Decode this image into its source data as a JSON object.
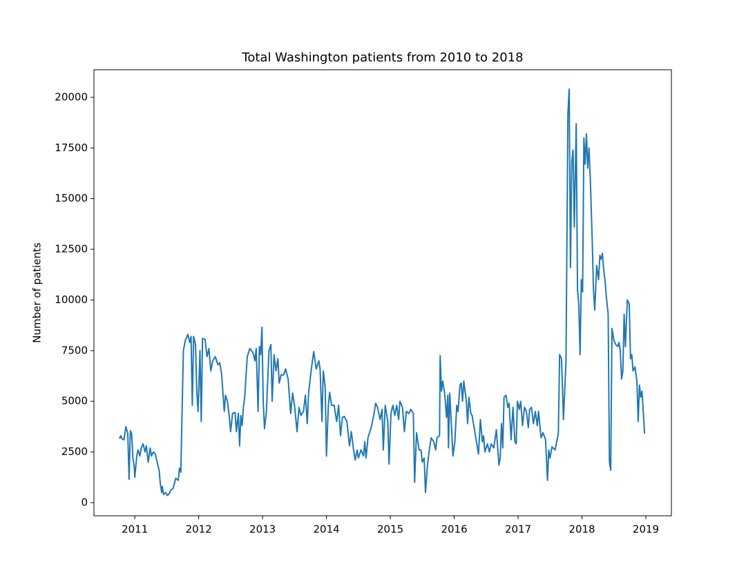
{
  "chart_data": {
    "type": "line",
    "title": "Total Washington patients from 2010 to 2018",
    "ylabel": "Number of patients",
    "color": "#1f77b4",
    "xlim": [
      2010.36,
      2019.4
    ],
    "xticks": [
      2011,
      2012,
      2013,
      2014,
      2015,
      2016,
      2017,
      2018,
      2019
    ],
    "ylim": [
      -650,
      21360
    ],
    "yticks": [
      0,
      2500,
      5000,
      7500,
      10000,
      12500,
      15000,
      17500,
      20000
    ],
    "x": [
      2010.76,
      2010.78,
      2010.8,
      2010.83,
      2010.86,
      2010.89,
      2010.91,
      2010.93,
      2010.95,
      2010.97,
      2010.99,
      2011.0,
      2011.03,
      2011.05,
      2011.08,
      2011.1,
      2011.13,
      2011.16,
      2011.18,
      2011.21,
      2011.24,
      2011.26,
      2011.29,
      2011.32,
      2011.35,
      2011.38,
      2011.4,
      2011.42,
      2011.43,
      2011.45,
      2011.48,
      2011.51,
      2011.54,
      2011.56,
      2011.6,
      2011.64,
      2011.68,
      2011.7,
      2011.72,
      2011.76,
      2011.79,
      2011.83,
      2011.86,
      2011.88,
      2011.9,
      2011.92,
      2011.95,
      2011.97,
      2011.99,
      2012.02,
      2012.04,
      2012.06,
      2012.1,
      2012.13,
      2012.16,
      2012.19,
      2012.22,
      2012.26,
      2012.3,
      2012.33,
      2012.36,
      2012.4,
      2012.42,
      2012.45,
      2012.48,
      2012.5,
      2012.53,
      2012.57,
      2012.59,
      2012.62,
      2012.64,
      2012.66,
      2012.68,
      2012.7,
      2012.72,
      2012.76,
      2012.8,
      2012.85,
      2012.88,
      2012.9,
      2012.93,
      2012.95,
      2012.97,
      2012.99,
      2013.01,
      2013.03,
      2013.06,
      2013.1,
      2013.13,
      2013.15,
      2013.18,
      2013.21,
      2013.24,
      2013.26,
      2013.29,
      2013.33,
      2013.36,
      2013.4,
      2013.44,
      2013.47,
      2013.5,
      2013.54,
      2013.57,
      2013.6,
      2013.64,
      2013.67,
      2013.7,
      2013.72,
      2013.76,
      2013.8,
      2013.84,
      2013.88,
      2013.9,
      2013.93,
      2013.95,
      2013.98,
      2014.0,
      2014.03,
      2014.05,
      2014.08,
      2014.12,
      2014.16,
      2014.19,
      2014.22,
      2014.25,
      2014.28,
      2014.32,
      2014.36,
      2014.39,
      2014.42,
      2014.45,
      2014.48,
      2014.5,
      2014.54,
      2014.58,
      2014.6,
      2014.62,
      2014.65,
      2014.7,
      2014.74,
      2014.77,
      2014.8,
      2014.84,
      2014.87,
      2014.89,
      2014.92,
      2014.96,
      2014.98,
      2015.01,
      2015.04,
      2015.07,
      2015.1,
      2015.13,
      2015.15,
      2015.19,
      2015.22,
      2015.25,
      2015.29,
      2015.32,
      2015.36,
      2015.38,
      2015.41,
      2015.45,
      2015.48,
      2015.5,
      2015.53,
      2015.55,
      2015.58,
      2015.61,
      2015.64,
      2015.68,
      2015.71,
      2015.73,
      2015.77,
      2015.78,
      2015.8,
      2015.82,
      2015.85,
      2015.88,
      2015.9,
      2015.91,
      2015.93,
      2015.95,
      2015.98,
      2016.01,
      2016.04,
      2016.06,
      2016.09,
      2016.11,
      2016.13,
      2016.15,
      2016.19,
      2016.21,
      2016.23,
      2016.26,
      2016.28,
      2016.38,
      2016.41,
      2016.44,
      2016.46,
      2016.48,
      2016.52,
      2016.55,
      2016.58,
      2016.62,
      2016.66,
      2016.7,
      2016.72,
      2016.74,
      2016.76,
      2016.78,
      2016.81,
      2016.84,
      2016.86,
      2016.89,
      2016.92,
      2016.95,
      2016.97,
      2016.99,
      2017.02,
      2017.04,
      2017.07,
      2017.1,
      2017.13,
      2017.16,
      2017.18,
      2017.21,
      2017.24,
      2017.27,
      2017.3,
      2017.32,
      2017.36,
      2017.39,
      2017.43,
      2017.46,
      2017.48,
      2017.5,
      2017.53,
      2017.58,
      2017.61,
      2017.63,
      2017.65,
      2017.68,
      2017.71,
      2017.75,
      2017.78,
      2017.8,
      2017.82,
      2017.84,
      2017.86,
      2017.88,
      2017.91,
      2017.93,
      2017.95,
      2017.97,
      2017.99,
      2018.01,
      2018.03,
      2018.05,
      2018.07,
      2018.09,
      2018.11,
      2018.13,
      2018.16,
      2018.18,
      2018.2,
      2018.23,
      2018.26,
      2018.28,
      2018.3,
      2018.32,
      2018.34,
      2018.36,
      2018.38,
      2018.41,
      2018.43,
      2018.45,
      2018.47,
      2018.5,
      2018.53,
      2018.56,
      2018.58,
      2018.6,
      2018.62,
      2018.64,
      2018.66,
      2018.68,
      2018.71,
      2018.74,
      2018.76,
      2018.78,
      2018.8,
      2018.83,
      2018.86,
      2018.88,
      2018.9,
      2018.92,
      2018.94,
      2018.98
    ],
    "values": [
      3150,
      3300,
      3150,
      3100,
      3750,
      3400,
      1150,
      3550,
      3400,
      2200,
      1800,
      1250,
      2300,
      2600,
      2300,
      2700,
      2900,
      2500,
      2800,
      2000,
      2700,
      2300,
      2500,
      2400,
      2000,
      1600,
      900,
      500,
      800,
      400,
      500,
      350,
      450,
      600,
      700,
      1200,
      1100,
      1700,
      1500,
      7500,
      8000,
      8300,
      7900,
      8200,
      4800,
      8200,
      7800,
      5500,
      4500,
      7500,
      4000,
      8100,
      8050,
      7200,
      7600,
      6500,
      7000,
      7200,
      6800,
      6900,
      6300,
      4500,
      5300,
      5000,
      4200,
      3500,
      4400,
      4450,
      3500,
      4400,
      2800,
      4300,
      3800,
      4700,
      5200,
      7200,
      7600,
      7400,
      7000,
      7600,
      4500,
      7700,
      7300,
      8650,
      5000,
      3650,
      4500,
      7500,
      7800,
      5000,
      7300,
      6500,
      7100,
      5900,
      6300,
      6300,
      6600,
      6100,
      4400,
      5400,
      4800,
      3500,
      4700,
      4300,
      4500,
      5300,
      3900,
      5400,
      6500,
      7450,
      6600,
      7000,
      6600,
      4000,
      6500,
      5700,
      2300,
      4800,
      5450,
      4800,
      4800,
      4000,
      4800,
      3300,
      4200,
      4250,
      4000,
      2800,
      3500,
      2700,
      2100,
      2600,
      2200,
      2600,
      2300,
      3000,
      2200,
      3200,
      3700,
      4300,
      4900,
      4700,
      4100,
      4600,
      2600,
      4800,
      4000,
      1900,
      4400,
      4800,
      4300,
      4800,
      4100,
      5000,
      4700,
      3500,
      4500,
      4400,
      4600,
      4400,
      1000,
      3450,
      2600,
      2600,
      2000,
      2200,
      500,
      1800,
      2600,
      3200,
      3000,
      2600,
      3200,
      3300,
      7250,
      5500,
      6000,
      5400,
      4200,
      5300,
      2700,
      5400,
      4200,
      2300,
      3000,
      4800,
      4500,
      5800,
      5900,
      5000,
      6000,
      5000,
      3900,
      5200,
      4400,
      4300,
      2400,
      4100,
      3000,
      3300,
      2500,
      2900,
      2500,
      2900,
      2700,
      3600,
      1850,
      2200,
      3900,
      2700,
      5200,
      5300,
      4700,
      4900,
      3100,
      4700,
      3000,
      2900,
      5000,
      4600,
      5000,
      3800,
      4700,
      4500,
      3700,
      4600,
      4700,
      3900,
      4500,
      3800,
      4500,
      3200,
      3450,
      3100,
      1100,
      2600,
      2200,
      2750,
      2600,
      3100,
      3400,
      7300,
      7100,
      4100,
      7000,
      19200,
      20400,
      11600,
      16800,
      17400,
      13600,
      18700,
      10500,
      9800,
      7300,
      11000,
      10400,
      18000,
      16700,
      18200,
      16500,
      17500,
      16000,
      13000,
      10500,
      9500,
      11700,
      11000,
      12200,
      12000,
      12300,
      11500,
      11000,
      10200,
      9300,
      2000,
      1600,
      8600,
      8000,
      7800,
      7700,
      7900,
      7500,
      6100,
      6500,
      9300,
      7700,
      10000,
      9800,
      7100,
      7300,
      6500,
      6700,
      6000,
      4000,
      5800,
      5200,
      5500,
      3400
    ]
  }
}
